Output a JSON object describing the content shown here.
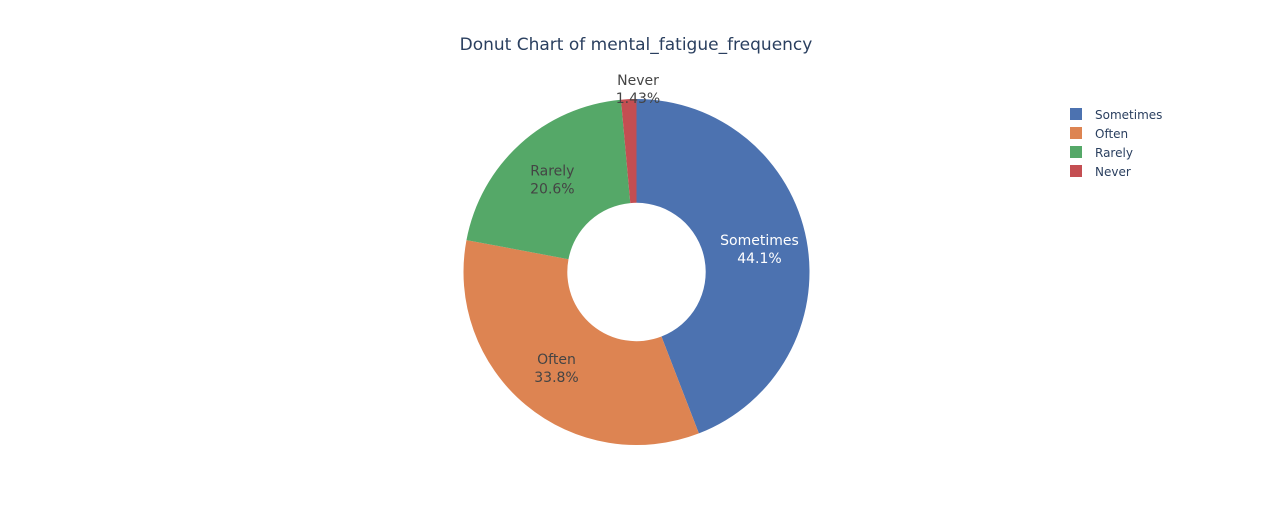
{
  "chart_data": {
    "type": "pie",
    "title": "Donut Chart of mental_fatigue_frequency",
    "hole": 0.4,
    "categories": [
      "Sometimes",
      "Often",
      "Rarely",
      "Never"
    ],
    "values": [
      44.1,
      33.8,
      20.6,
      1.43
    ],
    "percent_labels": [
      "44.1%",
      "33.8%",
      "20.6%",
      "1.43%"
    ],
    "colors": [
      "#4c72b0",
      "#dd8452",
      "#55a868",
      "#c44e52"
    ],
    "label_colors": [
      "#ffffff",
      "#444444",
      "#444444",
      "#444444"
    ],
    "legend": {
      "position": "top-right",
      "items": [
        "Sometimes",
        "Often",
        "Rarely",
        "Never"
      ]
    }
  }
}
